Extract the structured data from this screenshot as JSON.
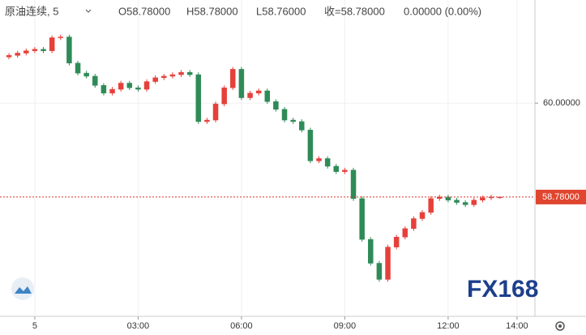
{
  "chart_data": {
    "type": "candlestick",
    "title": "原油连续, 5",
    "legend_values": [
      "O58.78000",
      "H58.78000",
      "L58.76000",
      "收=58.78000",
      "0.00000 (0.00%)"
    ],
    "watermark": "FX168",
    "up_color": "#e6403a",
    "down_color": "#2e8b57",
    "x": [
      -0.75,
      -0.5,
      -0.25,
      0,
      0.25,
      0.5,
      0.75,
      1,
      1.25,
      1.5,
      1.75,
      2,
      2.25,
      2.5,
      2.75,
      3,
      3.25,
      3.5,
      3.75,
      4,
      4.25,
      4.5,
      4.75,
      5,
      5.25,
      5.5,
      5.75,
      6,
      6.25,
      6.5,
      6.75,
      7,
      7.25,
      7.5,
      7.75,
      8,
      8.25,
      8.5,
      8.75,
      9,
      9.25,
      9.5,
      9.75,
      10,
      10.25,
      10.5,
      10.75,
      11,
      11.25,
      11.5,
      11.75,
      12,
      12.25,
      12.5,
      12.75,
      13,
      13.25,
      13.5
    ],
    "open": [
      60.6,
      60.62,
      60.65,
      60.68,
      60.7,
      60.68,
      60.85,
      60.86,
      60.52,
      60.39,
      60.35,
      60.23,
      60.13,
      60.18,
      60.26,
      60.2,
      60.18,
      60.28,
      60.33,
      60.35,
      60.37,
      60.4,
      60.37,
      59.76,
      59.78,
      59.99,
      60.2,
      60.44,
      60.07,
      60.13,
      60.16,
      60.02,
      59.92,
      59.78,
      59.76,
      59.65,
      59.25,
      59.28,
      59.18,
      59.11,
      59.13,
      58.76,
      58.23,
      57.92,
      57.71,
      58.13,
      58.26,
      58.37,
      58.5,
      58.58,
      58.76,
      58.78,
      58.74,
      58.71,
      58.68,
      58.74,
      58.77,
      58.78
    ],
    "high": [
      60.65,
      60.68,
      60.71,
      60.73,
      60.73,
      60.88,
      60.89,
      60.89,
      60.55,
      60.42,
      60.38,
      60.26,
      60.21,
      60.29,
      60.29,
      60.23,
      60.31,
      60.36,
      60.38,
      60.4,
      60.43,
      60.43,
      60.4,
      59.81,
      60.02,
      60.23,
      60.47,
      60.47,
      60.16,
      60.19,
      60.19,
      60.05,
      59.95,
      59.81,
      59.79,
      59.68,
      59.31,
      59.31,
      59.21,
      59.16,
      59.16,
      58.79,
      58.26,
      57.95,
      58.16,
      58.29,
      58.4,
      58.53,
      58.61,
      58.79,
      58.81,
      58.81,
      58.77,
      58.74,
      58.77,
      58.8,
      58.81,
      58.78
    ],
    "low": [
      60.57,
      60.59,
      60.62,
      60.65,
      60.65,
      60.65,
      60.82,
      60.49,
      60.36,
      60.32,
      60.2,
      60.1,
      60.1,
      60.15,
      60.17,
      60.15,
      60.15,
      60.25,
      60.3,
      60.32,
      60.34,
      60.34,
      59.73,
      59.73,
      59.75,
      59.96,
      60.17,
      60.04,
      60.04,
      60.1,
      59.99,
      59.89,
      59.75,
      59.73,
      59.62,
      59.22,
      59.22,
      59.15,
      59.08,
      59.08,
      58.73,
      58.2,
      57.89,
      57.68,
      57.68,
      58.1,
      58.23,
      58.34,
      58.47,
      58.55,
      58.73,
      58.71,
      58.68,
      58.65,
      58.65,
      58.71,
      58.74,
      58.76
    ],
    "close": [
      60.62,
      60.65,
      60.68,
      60.7,
      60.68,
      60.85,
      60.86,
      60.52,
      60.39,
      60.35,
      60.23,
      60.13,
      60.18,
      60.26,
      60.2,
      60.18,
      60.28,
      60.33,
      60.35,
      60.37,
      60.4,
      60.37,
      59.76,
      59.78,
      59.99,
      60.2,
      60.44,
      60.07,
      60.13,
      60.16,
      60.02,
      59.92,
      59.78,
      59.76,
      59.65,
      59.25,
      59.28,
      59.18,
      59.11,
      59.13,
      58.76,
      58.23,
      57.92,
      57.71,
      58.13,
      58.26,
      58.37,
      58.5,
      58.58,
      58.76,
      58.78,
      58.74,
      58.71,
      58.68,
      58.74,
      58.77,
      58.78,
      58.78
    ],
    "xlim": [
      -1.01,
      14.52
    ],
    "xticks": [
      {
        "value": 0,
        "label": "5"
      },
      {
        "value": 3,
        "label": "03:00"
      },
      {
        "value": 6,
        "label": "06:00"
      },
      {
        "value": 9,
        "label": "09:00"
      },
      {
        "value": 12,
        "label": "12:00"
      },
      {
        "value": 14,
        "label": "14:00"
      }
    ],
    "ylim": [
      57.23,
      61.34
    ],
    "yticks": [
      {
        "value": 60,
        "label": "60.00000"
      }
    ],
    "last_price": {
      "value": 58.78,
      "label": "58.78000"
    },
    "grid": true
  }
}
